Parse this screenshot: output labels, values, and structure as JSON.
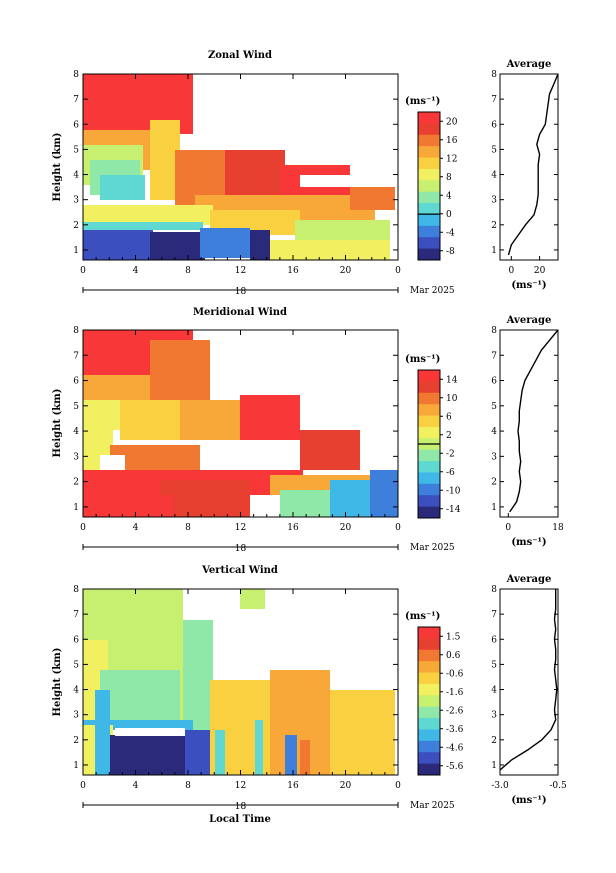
{
  "colors": {
    "scale": [
      "#2b2a7a",
      "#3b4fbf",
      "#3f7fdc",
      "#3fb8e8",
      "#5fd8d2",
      "#8fe8a8",
      "#c8f070",
      "#f0f060",
      "#f8d040",
      "#f8a838",
      "#f07830",
      "#e84030",
      "#f83838"
    ]
  },
  "common": {
    "xticks": [
      "0",
      "4",
      "8",
      "12",
      "16",
      "20",
      "0"
    ],
    "yticks": [
      "1",
      "2",
      "3",
      "4",
      "5",
      "6",
      "7",
      "8"
    ],
    "ylabel": "Height (km)",
    "date_label": "Mar 2025",
    "day_label": "18",
    "unit": "(ms⁻¹)",
    "xlabel": "Local Time",
    "avg_title": "Average"
  },
  "chart_data": [
    {
      "type": "heatmap",
      "title": "Zonal Wind",
      "x_range": [
        0,
        24
      ],
      "y_range": [
        0.6,
        8
      ],
      "colorbar_ticks": [
        "20",
        "16",
        "12",
        "8",
        "4",
        "0",
        "-4",
        "-8"
      ],
      "colorbar_range": [
        -10,
        22
      ],
      "profile": {
        "title": "Average",
        "xticks": [
          "0",
          "20"
        ],
        "xlim": [
          -8,
          33
        ],
        "height": [
          0.8,
          1.2,
          1.6,
          2.0,
          2.4,
          2.8,
          3.2,
          3.6,
          4.0,
          4.4,
          4.8,
          5.2,
          5.6,
          6.0,
          6.4,
          6.8,
          7.2,
          7.6,
          8.0
        ],
        "value": [
          -2,
          0,
          5,
          10,
          16,
          18,
          19,
          19,
          19,
          19,
          20,
          18,
          20,
          24,
          25,
          26,
          27,
          30,
          33
        ]
      }
    },
    {
      "type": "heatmap",
      "title": "Meridional Wind",
      "x_range": [
        0,
        24
      ],
      "y_range": [
        0.6,
        8
      ],
      "colorbar_ticks": [
        "14",
        "10",
        "6",
        "2",
        "-2",
        "-6",
        "-10",
        "-14"
      ],
      "colorbar_range": [
        -16,
        16
      ],
      "profile": {
        "title": "Average",
        "xticks": [
          "0",
          "18"
        ],
        "xlim": [
          -3,
          18
        ],
        "height": [
          0.8,
          1.2,
          1.6,
          2.0,
          2.4,
          2.8,
          3.2,
          3.6,
          4.0,
          4.4,
          4.8,
          5.2,
          5.6,
          6.0,
          6.4,
          6.8,
          7.2,
          7.6,
          8.0
        ],
        "value": [
          0.5,
          3,
          4,
          4.5,
          4,
          4.5,
          4,
          4,
          3.5,
          4,
          4,
          4.5,
          5,
          6,
          8,
          10,
          12,
          15,
          18
        ]
      }
    },
    {
      "type": "heatmap",
      "title": "Vertical Wind",
      "x_range": [
        0,
        24
      ],
      "y_range": [
        0.6,
        8
      ],
      "colorbar_ticks": [
        "1.5",
        "0.6",
        "-0.6",
        "-1.6",
        "-2.6",
        "-3.6",
        "-4.6",
        "-5.6"
      ],
      "colorbar_range": [
        -6.2,
        2.0
      ],
      "profile": {
        "title": "Average",
        "xticks": [
          "-3.0",
          "-0.5"
        ],
        "xlim": [
          -3.0,
          -0.5
        ],
        "height": [
          0.8,
          1.2,
          1.6,
          2.0,
          2.4,
          2.8,
          3.2,
          3.6,
          4.0,
          4.4,
          4.8,
          5.2,
          5.6,
          6.0,
          6.4,
          6.8,
          7.2,
          7.6,
          8.0
        ],
        "value": [
          -3.0,
          -2.5,
          -1.8,
          -1.2,
          -0.8,
          -0.6,
          -0.65,
          -0.6,
          -0.55,
          -0.6,
          -0.65,
          -0.6,
          -0.6,
          -0.65,
          -0.6,
          -0.65,
          -0.6,
          -0.6,
          -0.6
        ]
      }
    }
  ]
}
